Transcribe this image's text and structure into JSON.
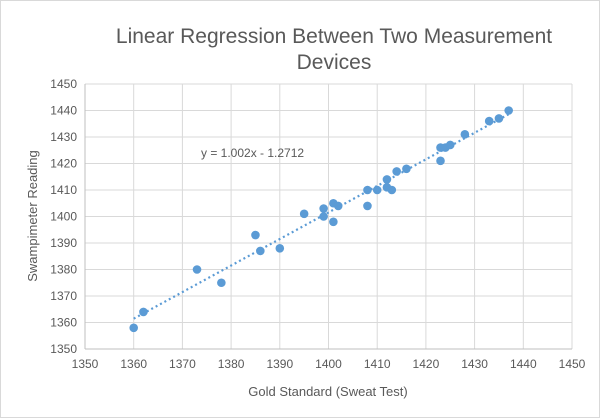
{
  "chart_data": {
    "type": "scatter",
    "title_lines": [
      "Linear Regression Between Two Measurement",
      "Devices"
    ],
    "xlabel": "Gold Standard (Sweat Test)",
    "ylabel": "Swampimeter Reading",
    "xlim": [
      1350,
      1450
    ],
    "ylim": [
      1350,
      1450
    ],
    "xticks": [
      1350,
      1360,
      1370,
      1380,
      1390,
      1400,
      1410,
      1420,
      1430,
      1440,
      1450
    ],
    "yticks": [
      1350,
      1360,
      1370,
      1380,
      1390,
      1400,
      1410,
      1420,
      1430,
      1440,
      1450
    ],
    "grid": true,
    "color": "#5b9bd5",
    "trendline": {
      "slope": 1.002,
      "intercept": -1.2712,
      "label": "y = 1.002x - 1.2712",
      "x_range": [
        1360,
        1437
      ],
      "style": "dotted"
    },
    "points": [
      [
        1360,
        1358
      ],
      [
        1362,
        1364
      ],
      [
        1373,
        1380
      ],
      [
        1378,
        1375
      ],
      [
        1385,
        1393
      ],
      [
        1386,
        1387
      ],
      [
        1390,
        1388
      ],
      [
        1395,
        1401
      ],
      [
        1399,
        1400
      ],
      [
        1399,
        1403
      ],
      [
        1401,
        1405
      ],
      [
        1401,
        1398
      ],
      [
        1402,
        1404
      ],
      [
        1408,
        1410
      ],
      [
        1408,
        1404
      ],
      [
        1410,
        1410
      ],
      [
        1412,
        1411
      ],
      [
        1412,
        1414
      ],
      [
        1413,
        1410
      ],
      [
        1414,
        1417
      ],
      [
        1416,
        1418
      ],
      [
        1423,
        1426
      ],
      [
        1423,
        1421
      ],
      [
        1424,
        1426
      ],
      [
        1425,
        1427
      ],
      [
        1428,
        1431
      ],
      [
        1433,
        1436
      ],
      [
        1435,
        1437
      ],
      [
        1437,
        1440
      ]
    ]
  }
}
